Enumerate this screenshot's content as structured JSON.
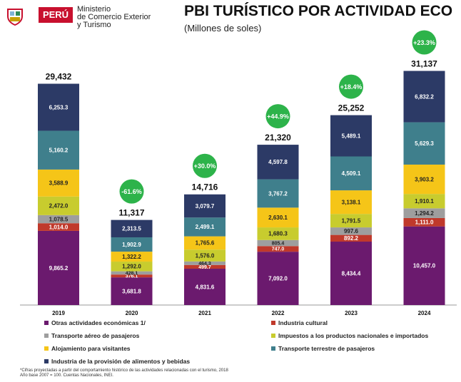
{
  "header": {
    "country": "PERÚ",
    "ministry_line1": "Ministerio",
    "ministry_line2": "de Comercio Exterior",
    "ministry_line3": "y Turismo",
    "title": "PBI TURÍSTICO POR ACTIVIDAD ECO",
    "subtitle": "(Millones de soles)"
  },
  "footnote": {
    "line1": "*Cifras proyectadas a partir del comportamiento histórico de las actividades relacionadas con el turismo, 2018",
    "line2": "Año base 2007 = 100.  Cuentas Nacionales, INEI."
  },
  "chart_data": {
    "type": "bar",
    "stacked": true,
    "categories": [
      "2019",
      "2020",
      "2021",
      "2022",
      "2023",
      "2024"
    ],
    "totals": [
      "29,432",
      "11,317",
      "14,716",
      "21,320",
      "25,252",
      "31,137"
    ],
    "growth": [
      "",
      "-61.6%",
      "+30.0%",
      "+44.9%",
      "+18.4%",
      "+23.3%"
    ],
    "ylim": [
      0,
      34000
    ],
    "series": [
      {
        "name": "Otras actividades económicas 1/",
        "color": "#6b1a6e",
        "values": [
          9865.2,
          3681.8,
          4831.6,
          7092.0,
          8434.4,
          10457.0
        ],
        "labels": [
          "9,865.2",
          "3,681.8",
          "4,831.6",
          "7,092.0",
          "8,434.4",
          "10,457.0"
        ]
      },
      {
        "name": "Industria cultural",
        "color": "#c0392b",
        "values": [
          1014.0,
          376.1,
          499.7,
          747.0,
          892.2,
          1111.0
        ],
        "labels": [
          "1,014.0",
          "376.1",
          "499.7",
          "747.0",
          "892.2",
          "1,111.0"
        ]
      },
      {
        "name": "Transporte aéreo de pasajeros",
        "color": "#9e9e9e",
        "values": [
          1078.5,
          428.1,
          464.3,
          805.4,
          997.6,
          1294.2
        ],
        "labels": [
          "1,078.5",
          "428.1",
          "464.3",
          "805.4",
          "997.6",
          "1,294.2"
        ]
      },
      {
        "name": "Impuestos a los productos nacionales e importados",
        "color": "#c8cc2e",
        "values": [
          2472.0,
          1292.0,
          1576.0,
          1680.3,
          1791.5,
          1910.1
        ],
        "labels": [
          "2,472.0",
          "1,292.0",
          "1,576.0",
          "1,680.3",
          "1,791.5",
          "1,910.1"
        ]
      },
      {
        "name": "Alojamiento para visitantes",
        "color": "#f5c518",
        "values": [
          3588.9,
          1322.2,
          1765.6,
          2630.1,
          3138.1,
          3903.2
        ],
        "labels": [
          "3,588.9",
          "1,322.2",
          "1,765.6",
          "2,630.1",
          "3,138.1",
          "3,903.2"
        ]
      },
      {
        "name": "Transporte terrestre de pasajeros",
        "color": "#3f7f8c",
        "values": [
          5160.2,
          1902.9,
          2499.1,
          3767.2,
          4509.1,
          5629.3
        ],
        "labels": [
          "5,160.2",
          "1,902.9",
          "2,499.1",
          "3,767.2",
          "4,509.1",
          "5,629.3"
        ]
      },
      {
        "name": "Industria de la provisión de alimentos y bebidas",
        "color": "#2c3a66",
        "values": [
          6253.3,
          2313.5,
          3079.7,
          4597.8,
          5489.1,
          6832.2
        ],
        "labels": [
          "6,253.3",
          "2,313.5",
          "3,079.7",
          "4,597.8",
          "5,489.1",
          "6,832.2"
        ]
      }
    ],
    "legend_order": [
      0,
      1,
      2,
      3,
      4,
      5,
      6
    ],
    "legend_placement": "bottom",
    "grid": false
  }
}
